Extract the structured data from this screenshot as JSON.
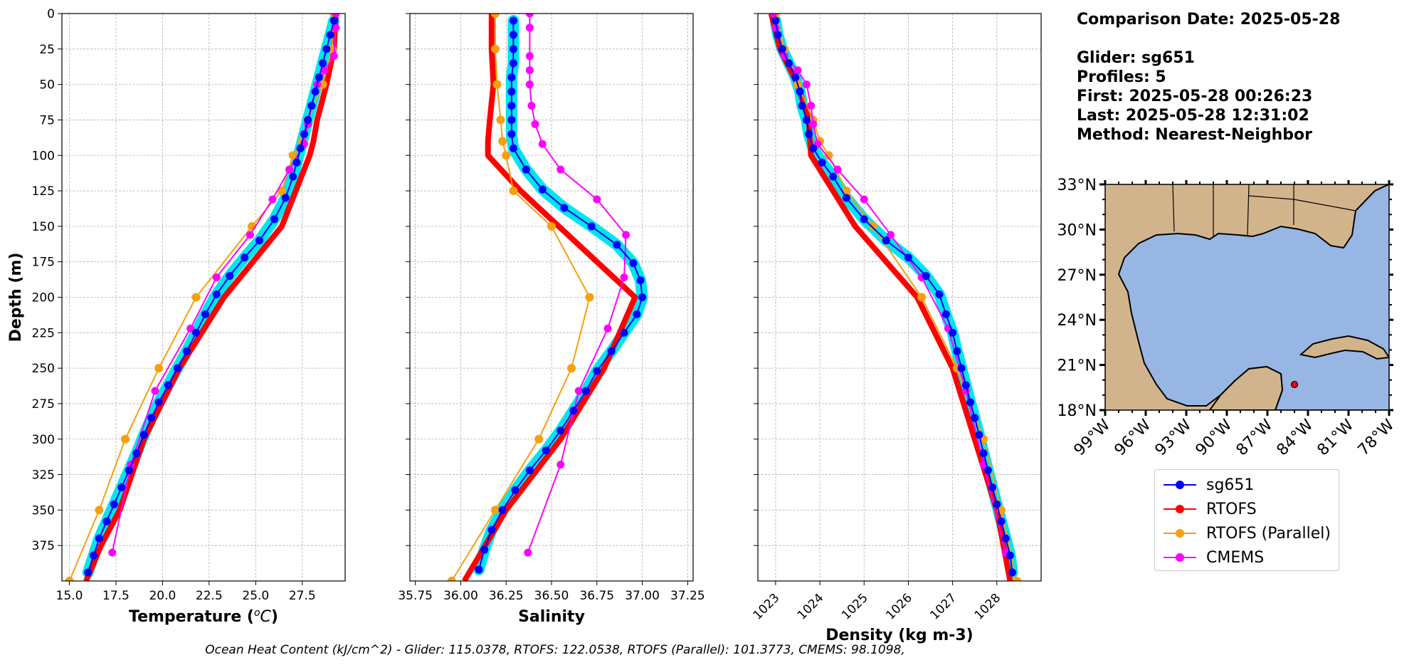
{
  "info": {
    "comparison_date": "Comparison Date: 2025-05-28",
    "glider": "Glider: sg651",
    "profiles": "Profiles: 5",
    "first": "First: 2025-05-28 00:26:23",
    "last": "Last: 2025-05-28 12:31:02",
    "method": "Method: Nearest-Neighbor"
  },
  "footer": "Ocean Heat Content (kJ/cm^2) - Glider: 115.0378,  RTOFS: 122.0538,  RTOFS (Parallel): 101.3773,  CMEMS: 98.1098,",
  "colors": {
    "sg651": "#0000ff",
    "sg651_band": "#00e5ee",
    "rtofs": "#ff0000",
    "rtofs_parallel": "#f5a00f",
    "cmems": "#ff00ff",
    "land": "#d2b48c",
    "ocean": "#98b6e3"
  },
  "legend": [
    {
      "label": "sg651",
      "color": "#0000ff"
    },
    {
      "label": "RTOFS",
      "color": "#ff0000"
    },
    {
      "label": "RTOFS (Parallel)",
      "color": "#f5a00f"
    },
    {
      "label": "CMEMS",
      "color": "#ff00ff"
    }
  ],
  "chart_data": [
    {
      "type": "line",
      "xlabel": "Temperature ($^oC$)",
      "ylabel": "Depth (m)",
      "xlim": [
        14.6,
        29.8
      ],
      "ylim": [
        400,
        0
      ],
      "xticks": [
        "15.0",
        "17.5",
        "20.0",
        "22.5",
        "25.0",
        "27.5"
      ],
      "yticks": [
        "0",
        "25",
        "50",
        "75",
        "100",
        "125",
        "150",
        "175",
        "200",
        "225",
        "250",
        "275",
        "300",
        "325",
        "350",
        "375"
      ],
      "grid": true,
      "series": [
        {
          "name": "sg651",
          "x": [
            29.2,
            29.0,
            28.8,
            28.6,
            28.4,
            28.2,
            28.0,
            27.8,
            27.6,
            27.4,
            27.2,
            27.0,
            26.6,
            26.0,
            25.2,
            24.4,
            23.6,
            22.9,
            22.3,
            21.8,
            21.3,
            20.8,
            20.3,
            19.8,
            19.4,
            19.0,
            18.6,
            18.2,
            17.8,
            17.4,
            17.0,
            16.6,
            16.3,
            16.0
          ],
          "y": [
            5,
            15,
            25,
            35,
            45,
            55,
            65,
            75,
            85,
            95,
            105,
            115,
            130,
            145,
            160,
            172,
            185,
            198,
            212,
            225,
            238,
            250,
            262,
            274,
            285,
            297,
            310,
            322,
            334,
            346,
            358,
            370,
            382,
            394
          ]
        },
        {
          "name": "RTOFS",
          "x": [
            29.3,
            29.2,
            28.8,
            28.3,
            28.1,
            27.9,
            26.4,
            23.3,
            20.9,
            19.0,
            17.7,
            16.7,
            15.9
          ],
          "y": [
            0,
            25,
            50,
            75,
            90,
            100,
            150,
            200,
            250,
            300,
            350,
            375,
            400
          ]
        },
        {
          "name": "RTOFS (Parallel)",
          "x": [
            29.2,
            29.1,
            28.6,
            27.8,
            27.5,
            27.0,
            26.4,
            24.8,
            21.8,
            19.8,
            18.0,
            16.6,
            15.0
          ],
          "y": [
            0,
            25,
            50,
            75,
            90,
            100,
            125,
            150,
            200,
            250,
            300,
            350,
            400
          ]
        },
        {
          "name": "CMEMS",
          "x": [
            29.3,
            29.3,
            29.2,
            28.7,
            28.3,
            28.0,
            27.8,
            27.6,
            26.8,
            25.9,
            24.7,
            22.9,
            21.5,
            19.6,
            18.3,
            17.3
          ],
          "y": [
            0,
            10,
            30,
            40,
            50,
            65,
            78,
            92,
            110,
            131,
            156,
            186,
            222,
            266,
            318,
            380
          ]
        }
      ]
    },
    {
      "type": "line",
      "xlabel": "Salinity",
      "xlim": [
        35.72,
        37.28
      ],
      "ylim": [
        400,
        0
      ],
      "xticks": [
        "35.75",
        "36.00",
        "36.25",
        "36.50",
        "36.75",
        "37.00",
        "37.25"
      ],
      "grid": true,
      "series": [
        {
          "name": "sg651",
          "x": [
            36.29,
            36.29,
            36.29,
            36.29,
            36.28,
            36.28,
            36.28,
            36.28,
            36.28,
            36.29,
            36.36,
            36.45,
            36.57,
            36.72,
            36.86,
            36.95,
            36.99,
            37.0,
            36.97,
            36.9,
            36.83,
            36.75,
            36.69,
            36.62,
            36.55,
            36.47,
            36.38,
            36.3,
            36.23,
            36.17,
            36.13,
            36.1
          ],
          "y": [
            5,
            15,
            25,
            35,
            45,
            55,
            65,
            75,
            85,
            95,
            110,
            124,
            137,
            150,
            163,
            176,
            188,
            200,
            212,
            225,
            238,
            252,
            266,
            280,
            294,
            308,
            322,
            336,
            350,
            364,
            378,
            392
          ]
        },
        {
          "name": "RTOFS",
          "x": [
            36.17,
            36.17,
            36.18,
            36.16,
            36.15,
            36.15,
            36.33,
            36.96,
            36.79,
            36.55,
            36.25,
            36.02
          ],
          "y": [
            0,
            25,
            50,
            75,
            90,
            100,
            125,
            200,
            250,
            300,
            350,
            400
          ]
        },
        {
          "name": "RTOFS (Parallel)",
          "x": [
            36.19,
            36.19,
            36.2,
            36.22,
            36.23,
            36.25,
            36.29,
            36.5,
            36.71,
            36.61,
            36.43,
            36.19,
            35.95
          ],
          "y": [
            0,
            25,
            50,
            75,
            90,
            100,
            125,
            150,
            200,
            250,
            300,
            350,
            400
          ]
        },
        {
          "name": "CMEMS",
          "x": [
            36.38,
            36.38,
            36.38,
            36.38,
            36.38,
            36.39,
            36.41,
            36.45,
            36.55,
            36.75,
            36.91,
            36.9,
            36.81,
            36.65,
            36.55,
            36.37
          ],
          "y": [
            0,
            10,
            30,
            40,
            50,
            65,
            78,
            92,
            110,
            131,
            156,
            186,
            222,
            266,
            318,
            380
          ]
        }
      ]
    },
    {
      "type": "line",
      "xlabel": "Density (kg m-3)",
      "xlim": [
        1022.6,
        1029.0
      ],
      "ylim": [
        400,
        0
      ],
      "xticks": [
        "1023",
        "1024",
        "1025",
        "1026",
        "1027",
        "1028"
      ],
      "grid": true,
      "series": [
        {
          "name": "sg651",
          "x": [
            1023.0,
            1023.05,
            1023.15,
            1023.3,
            1023.45,
            1023.55,
            1023.6,
            1023.7,
            1023.75,
            1023.85,
            1024.05,
            1024.3,
            1024.6,
            1025.0,
            1025.5,
            1026.0,
            1026.4,
            1026.7,
            1026.85,
            1027.0,
            1027.1,
            1027.2,
            1027.3,
            1027.4,
            1027.5,
            1027.6,
            1027.7,
            1027.8,
            1027.9,
            1028.0,
            1028.1,
            1028.2,
            1028.3,
            1028.35
          ],
          "y": [
            5,
            15,
            25,
            35,
            45,
            55,
            65,
            75,
            85,
            95,
            105,
            115,
            130,
            145,
            160,
            172,
            185,
            198,
            212,
            225,
            238,
            250,
            262,
            274,
            285,
            297,
            310,
            322,
            334,
            346,
            358,
            370,
            382,
            394
          ]
        },
        {
          "name": "RTOFS",
          "x": [
            1022.9,
            1023.1,
            1023.5,
            1023.75,
            1023.8,
            1024.8,
            1026.2,
            1027.0,
            1027.5,
            1028.0,
            1028.3
          ],
          "y": [
            0,
            25,
            50,
            75,
            100,
            150,
            200,
            250,
            300,
            350,
            400
          ]
        },
        {
          "name": "RTOFS (Parallel)",
          "x": [
            1023.0,
            1023.2,
            1023.5,
            1023.85,
            1024.0,
            1024.2,
            1024.6,
            1025.2,
            1026.3,
            1027.1,
            1027.7,
            1028.1,
            1028.45
          ],
          "y": [
            0,
            25,
            50,
            75,
            90,
            100,
            125,
            150,
            200,
            250,
            300,
            350,
            400
          ]
        },
        {
          "name": "CMEMS",
          "x": [
            1022.95,
            1023.0,
            1023.2,
            1023.5,
            1023.7,
            1023.8,
            1023.85,
            1023.95,
            1024.4,
            1025.0,
            1025.6,
            1026.3,
            1026.9,
            1027.3,
            1027.7,
            1028.2
          ],
          "y": [
            0,
            10,
            30,
            40,
            50,
            65,
            78,
            92,
            110,
            131,
            156,
            186,
            222,
            266,
            318,
            380
          ]
        }
      ]
    }
  ],
  "map": {
    "lon_range": [
      -99,
      -78
    ],
    "lat_range": [
      18,
      33
    ],
    "lon_ticks": [
      "99°W",
      "96°W",
      "93°W",
      "90°W",
      "87°W",
      "84°W",
      "81°W",
      "78°W"
    ],
    "lat_ticks": [
      "33°N",
      "30°N",
      "27°N",
      "24°N",
      "21°N",
      "18°N"
    ],
    "marker": {
      "lon": -85.0,
      "lat": 19.7
    }
  }
}
